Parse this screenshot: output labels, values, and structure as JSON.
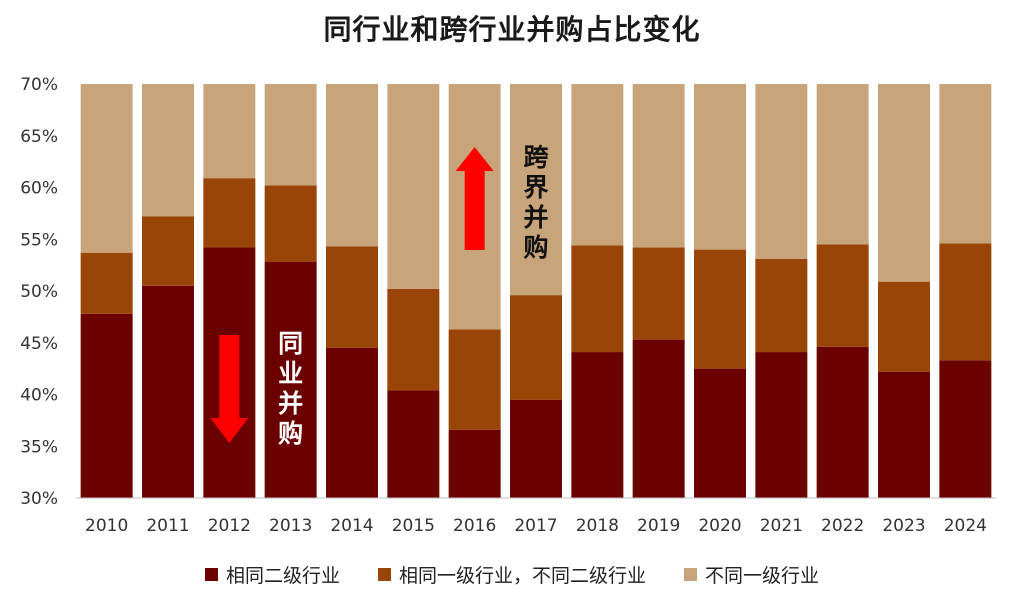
{
  "chart_data": {
    "type": "bar",
    "stacked": true,
    "title": "同行业和跨行业并购占比变化",
    "categories": [
      "2010",
      "2011",
      "2012",
      "2013",
      "2014",
      "2015",
      "2016",
      "2017",
      "2018",
      "2019",
      "2020",
      "2021",
      "2022",
      "2023",
      "2024"
    ],
    "series": [
      {
        "name": "相同二级行业",
        "color": "#6b0000",
        "cumulative": [
          47.8,
          50.5,
          54.2,
          52.8,
          44.5,
          40.4,
          36.6,
          39.5,
          44.1,
          45.3,
          42.5,
          44.1,
          44.6,
          42.2,
          43.3
        ]
      },
      {
        "name": "相同一级行业，不同二级行业",
        "color": "#9a4508",
        "cumulative": [
          53.7,
          57.2,
          60.9,
          60.2,
          54.3,
          50.2,
          46.3,
          49.6,
          54.4,
          54.2,
          54.0,
          53.1,
          54.5,
          50.9,
          54.6
        ]
      },
      {
        "name": "不同一级行业",
        "color": "#c8a47a",
        "cumulative": [
          70,
          70,
          70,
          70,
          70,
          70,
          70,
          70,
          70,
          70,
          70,
          70,
          70,
          70,
          70
        ]
      }
    ],
    "ylim": [
      30,
      70
    ],
    "yticks": [
      "30%",
      "35%",
      "40%",
      "45%",
      "50%",
      "55%",
      "60%",
      "65%",
      "70%"
    ],
    "annotations": [
      {
        "text": "同业并购",
        "direction": "down",
        "arrow_color": "#ff0000",
        "text_color": "#ffffff"
      },
      {
        "text": "跨界并购",
        "direction": "up",
        "arrow_color": "#ff0000",
        "text_color": "#111111"
      }
    ],
    "legend_position": "bottom"
  },
  "legend": [
    {
      "label": "相同二级行业",
      "color": "#6b0000"
    },
    {
      "label": "相同一级行业，不同二级行业",
      "color": "#9a4508"
    },
    {
      "label": "不同一级行业",
      "color": "#c8a47a"
    }
  ]
}
